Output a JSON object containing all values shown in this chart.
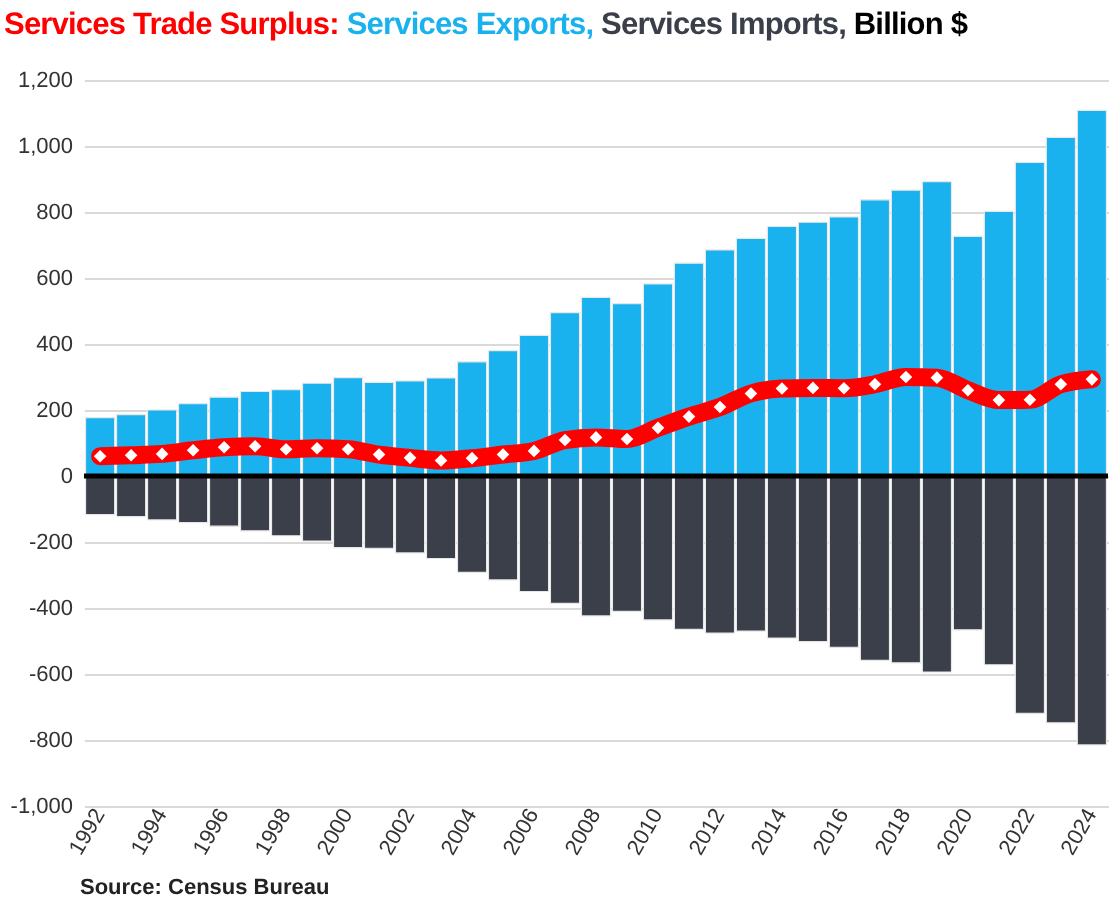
{
  "chart_data": {
    "type": "bar",
    "title": "Billion $",
    "stacked": true,
    "categories": [
      "1992",
      null,
      "1994",
      null,
      "1996",
      null,
      "1998",
      null,
      "2000",
      null,
      "2002",
      null,
      "2004",
      null,
      "2006",
      null,
      "2008",
      null,
      "2010",
      null,
      "2012",
      null,
      "2014",
      null,
      "2016",
      null,
      "2018",
      null,
      "2020",
      null,
      "2022",
      null,
      "2024"
    ],
    "series": [
      {
        "name": "Services Trade Surplus:",
        "type": "line",
        "color": "#ff0000",
        "marker": "diamond",
        "values": [
          60,
          63,
          67,
          78,
          87,
          90,
          81,
          84,
          81,
          65,
          55,
          47,
          54,
          65,
          76,
          109,
          117,
          112,
          146,
          180,
          209,
          250,
          265,
          267,
          266,
          278,
          300,
          298,
          260,
          230,
          231,
          278,
          293
        ]
      },
      {
        "name": "Services Exports,",
        "type": "bar",
        "color": "#1ab2ee",
        "values": [
          177,
          186,
          200,
          219,
          239,
          256,
          262,
          281,
          298,
          284,
          288,
          297,
          346,
          380,
          426,
          495,
          541,
          522,
          582,
          645,
          685,
          720,
          756,
          769,
          785,
          837,
          866,
          892,
          726,
          802,
          950,
          1026,
          1108
        ]
      },
      {
        "name": "Services Imports,",
        "type": "bar",
        "color": "#3a3f4a",
        "values": [
          -117,
          -123,
          -133,
          -141,
          -152,
          -166,
          -181,
          -197,
          -217,
          -219,
          -233,
          -250,
          -292,
          -315,
          -350,
          -386,
          -424,
          -410,
          -436,
          -465,
          -476,
          -470,
          -491,
          -502,
          -519,
          -559,
          -566,
          -594,
          -466,
          -572,
          -719,
          -748,
          -815
        ]
      }
    ],
    "ylim": [
      -1000,
      1200
    ],
    "yticks": [
      {
        "value": -1000,
        "label": "-1,000"
      },
      -800,
      -600,
      -400,
      -200,
      0,
      200,
      400,
      600,
      800,
      {
        "value": 1000,
        "label": "1,000"
      },
      {
        "value": 1200,
        "label": "1,200"
      }
    ],
    "grid": "y",
    "ref_lines": [
      {
        "axis": "y",
        "value": 0,
        "color": "#000000"
      }
    ],
    "annotations": [
      "Source: Census Bureau"
    ]
  }
}
